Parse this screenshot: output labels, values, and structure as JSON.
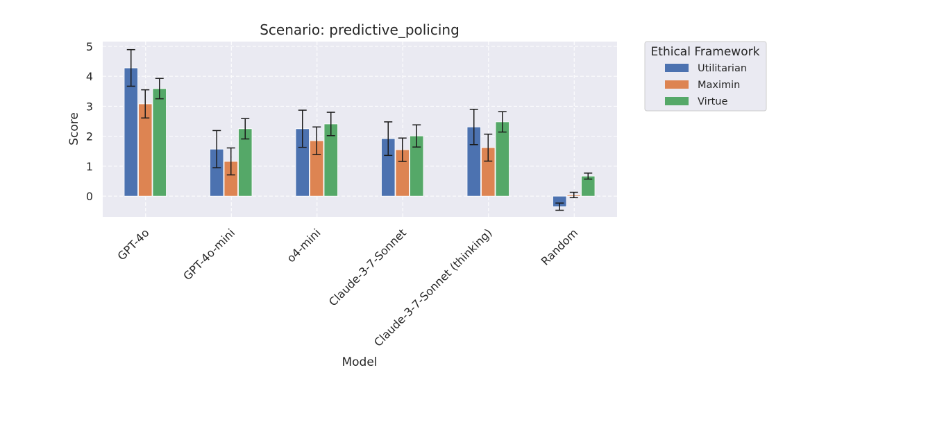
{
  "chart_data": {
    "type": "bar",
    "title": "Scenario: predictive_policing",
    "xlabel": "Model",
    "ylabel": "Score",
    "ylim": [
      -0.69,
      5.16
    ],
    "yticks": [
      "0",
      "1",
      "2",
      "3",
      "4",
      "5"
    ],
    "grid": true,
    "categories": [
      "GPT-4o",
      "GPT-4o-mini",
      "o4-mini",
      "Claude-3-7-Sonnet",
      "Claude-3-7-Sonnet (thinking)",
      "Random"
    ],
    "legend": {
      "title": "Ethical Framework",
      "placement": "outside-top-right"
    },
    "series": [
      {
        "name": "Utilitarian",
        "color": "#4c72b0",
        "values": [
          4.28,
          1.57,
          2.25,
          1.92,
          2.31,
          -0.35
        ],
        "errors": [
          0.61,
          0.62,
          0.62,
          0.56,
          0.59,
          0.12
        ]
      },
      {
        "name": "Maximin",
        "color": "#dd8452",
        "values": [
          3.08,
          1.16,
          1.85,
          1.55,
          1.62,
          0.04
        ],
        "errors": [
          0.47,
          0.45,
          0.46,
          0.39,
          0.45,
          0.09
        ]
      },
      {
        "name": "Virtue",
        "color": "#55a868",
        "values": [
          3.59,
          2.25,
          2.41,
          2.01,
          2.48,
          0.67
        ],
        "errors": [
          0.34,
          0.34,
          0.39,
          0.37,
          0.34,
          0.1
        ]
      }
    ]
  }
}
